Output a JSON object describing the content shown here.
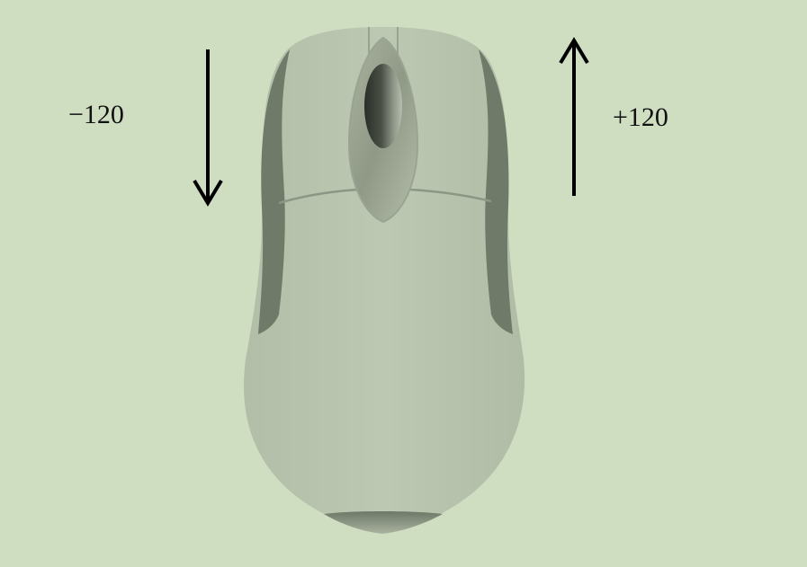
{
  "labels": {
    "scroll_down": "−120",
    "scroll_up": "+120"
  },
  "colors": {
    "background": "#cfddc1",
    "mouse_body": "#b8c4ae",
    "mouse_side_grip": "#6f7a68",
    "wheel_dark": "#2f332d",
    "arrow": "#000000"
  },
  "icons": {
    "mouse": "computer-mouse-top-view",
    "wheel": "scroll-wheel",
    "arrow_down": "arrow-down",
    "arrow_up": "arrow-up"
  }
}
